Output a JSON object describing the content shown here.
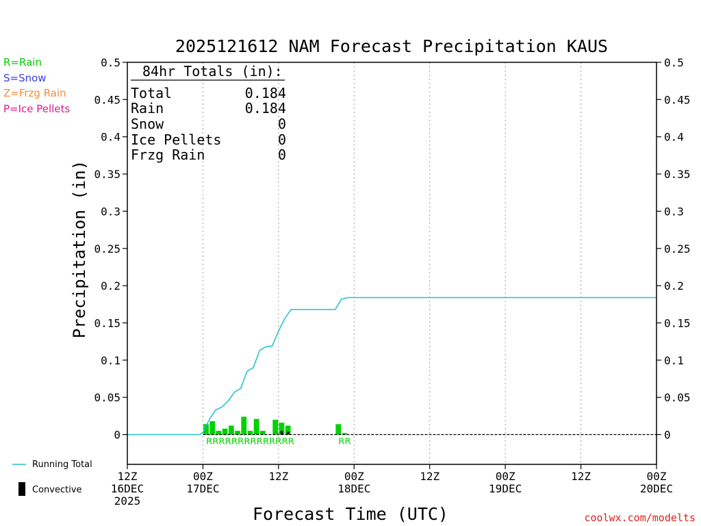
{
  "chart_data": {
    "type": "bar",
    "title": "2025121612 NAM Forecast Precipitation KAUS",
    "xlabel": "Forecast Time (UTC)",
    "ylabel": "Precipitation (in)",
    "ylim": [
      -0.04,
      0.5
    ],
    "yticks": [
      "0",
      "0.05",
      "0.1",
      "0.15",
      "0.2",
      "0.25",
      "0.3",
      "0.35",
      "0.4",
      "0.45",
      "0.5"
    ],
    "xlim_hours": [
      0,
      84
    ],
    "xticks": [
      {
        "hour": 0,
        "line1": "12Z",
        "line2": "16DEC",
        "line3": "2025"
      },
      {
        "hour": 12,
        "line1": "00Z",
        "line2": "17DEC",
        "line3": ""
      },
      {
        "hour": 24,
        "line1": "12Z",
        "line2": "",
        "line3": ""
      },
      {
        "hour": 36,
        "line1": "00Z",
        "line2": "18DEC",
        "line3": ""
      },
      {
        "hour": 48,
        "line1": "12Z",
        "line2": "",
        "line3": ""
      },
      {
        "hour": 60,
        "line1": "00Z",
        "line2": "19DEC",
        "line3": ""
      },
      {
        "hour": 72,
        "line1": "12Z",
        "line2": "",
        "line3": ""
      },
      {
        "hour": 84,
        "line1": "00Z",
        "line2": "20DEC",
        "line3": ""
      }
    ],
    "grid_hours": [
      12,
      24,
      36,
      48,
      60,
      72
    ],
    "precip_bars": [
      {
        "hour": 13,
        "value": 0.014
      },
      {
        "hour": 14,
        "value": 0.018
      },
      {
        "hour": 15,
        "value": 0.005
      },
      {
        "hour": 16,
        "value": 0.008
      },
      {
        "hour": 17,
        "value": 0.012
      },
      {
        "hour": 18,
        "value": 0.005
      },
      {
        "hour": 19,
        "value": 0.024
      },
      {
        "hour": 20,
        "value": 0.005
      },
      {
        "hour": 21,
        "value": 0.021
      },
      {
        "hour": 22,
        "value": 0.005
      },
      {
        "hour": 23,
        "value": 0.0
      },
      {
        "hour": 24,
        "value": 0.02
      },
      {
        "hour": 25,
        "value": 0.016
      },
      {
        "hour": 26,
        "value": 0.012
      },
      {
        "hour": 34,
        "value": 0.014
      },
      {
        "hour": 35,
        "value": 0.002
      }
    ],
    "convective_bars": [
      {
        "hour": 25,
        "value": 0.005
      },
      {
        "hour": 26,
        "value": 0.004
      }
    ],
    "running_total": {
      "name": "Running Total",
      "x": [
        0,
        11.5,
        12,
        13,
        14,
        15,
        16,
        17,
        18,
        19,
        20,
        21,
        22,
        23,
        24,
        25,
        26,
        27,
        28,
        29,
        30,
        31,
        32,
        33,
        34,
        35,
        84
      ],
      "y": [
        0,
        0,
        0.003,
        0.02,
        0.033,
        0.037,
        0.045,
        0.057,
        0.062,
        0.085,
        0.09,
        0.113,
        0.118,
        0.119,
        0.139,
        0.156,
        0.168,
        0.168,
        0.168,
        0.168,
        0.168,
        0.168,
        0.168,
        0.168,
        0.182,
        0.184,
        0.184
      ]
    },
    "ptype_labels": [
      {
        "hour_start": 12.5,
        "hour_end": 26.5,
        "text": "RRRRRRRRRRRRRR"
      },
      {
        "hour_start": 33.5,
        "hour_end": 35.5,
        "text": "RR"
      }
    ],
    "totals_box": {
      "heading": "84hr Totals (in):",
      "rows": [
        {
          "label": "Total",
          "value": "0.184"
        },
        {
          "label": "Rain",
          "value": "0.184"
        },
        {
          "label": "Snow",
          "value": "0"
        },
        {
          "label": "Ice Pellets",
          "value": "0"
        },
        {
          "label": "Frzg Rain",
          "value": "0"
        }
      ]
    },
    "legend_ptypes": [
      {
        "text": "R=Rain",
        "color": "#00cc00"
      },
      {
        "text": "S=Snow",
        "color": "#3a3ae8"
      },
      {
        "text": "Z=Frzg Rain",
        "color": "#f08c3c"
      },
      {
        "text": "P=Ice Pellets",
        "color": "#e0188c"
      }
    ],
    "legend_bottom": {
      "running_total_label": "Running Total",
      "convective_label": "Convective"
    },
    "colors": {
      "rain_bar": "#00d200",
      "running_total": "#20c0c8",
      "convective": "#000000"
    },
    "credit": "coolwx.com/modelts"
  }
}
